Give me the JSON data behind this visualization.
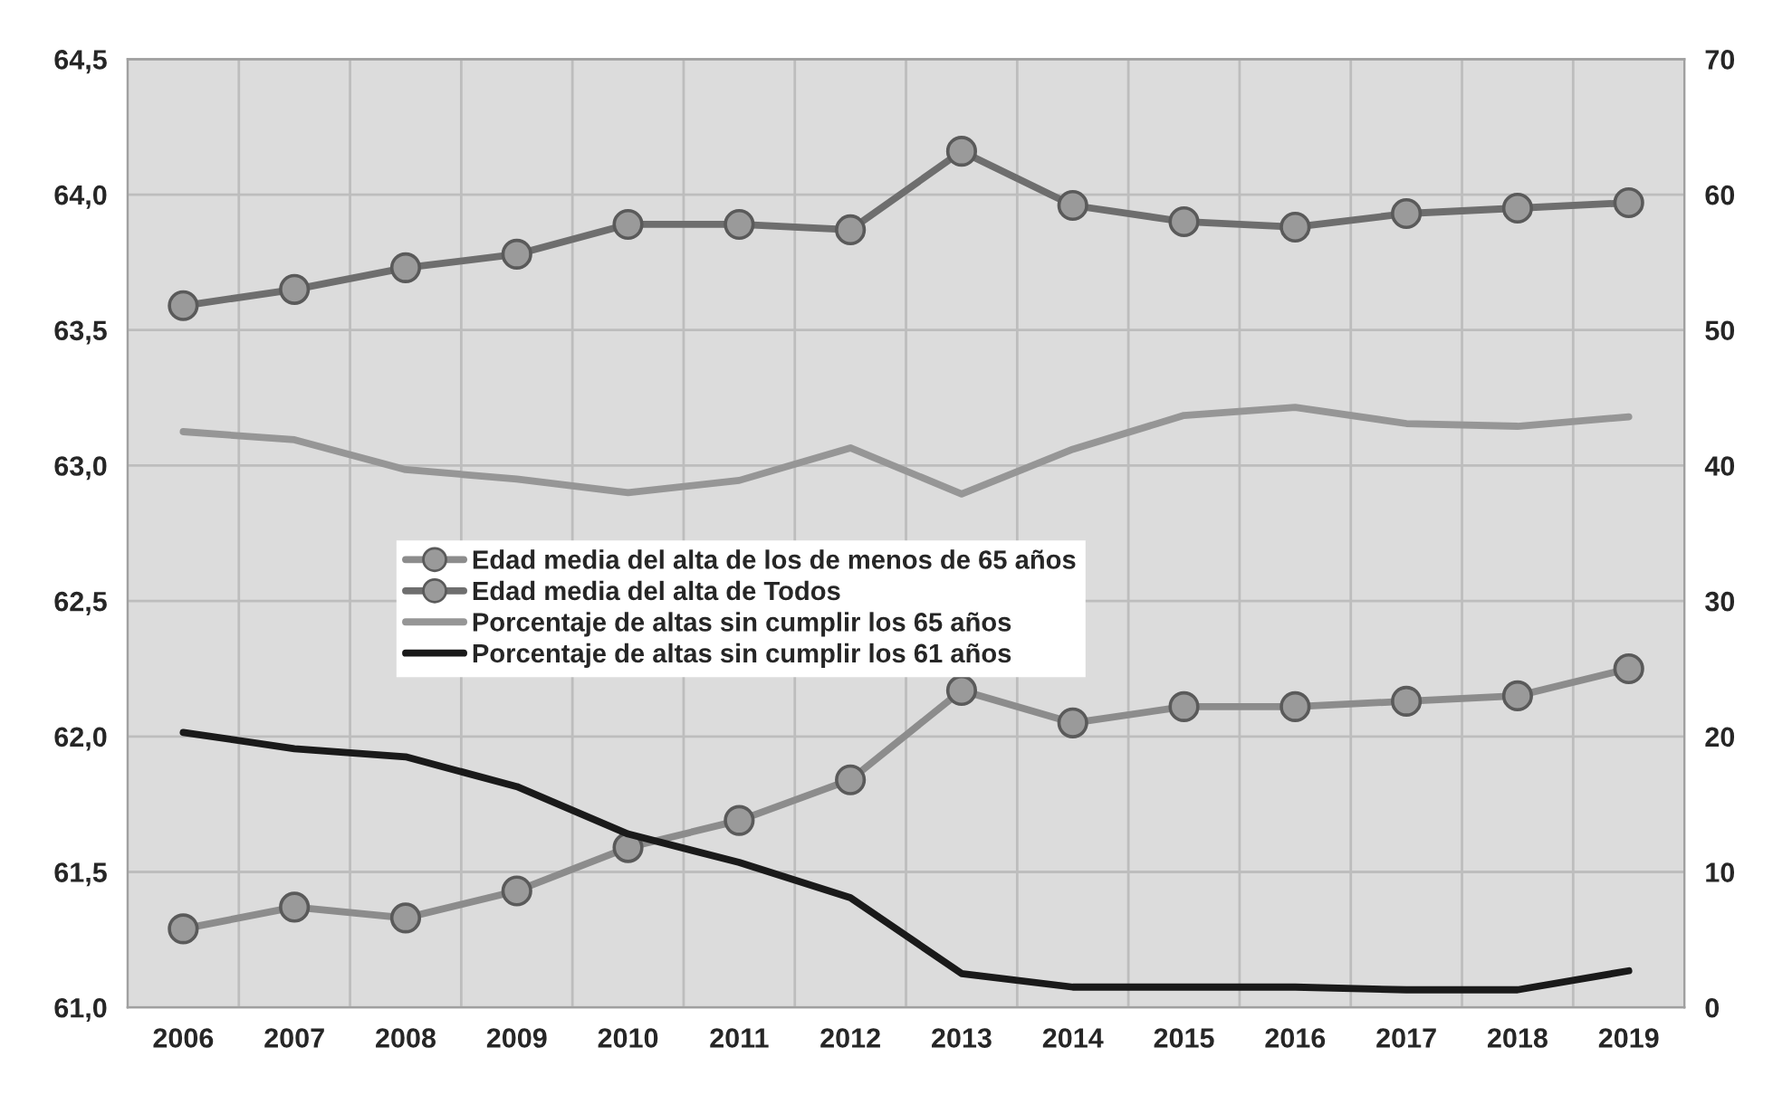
{
  "chart_data": {
    "type": "line",
    "categories": [
      "2006",
      "2007",
      "2008",
      "2009",
      "2010",
      "2011",
      "2012",
      "2013",
      "2014",
      "2015",
      "2016",
      "2017",
      "2018",
      "2019"
    ],
    "series": [
      {
        "name": "Edad media del alta de los de menos de 65 años",
        "color": "#8c8c8c",
        "marker": "circle",
        "values": [
          61.29,
          61.37,
          61.33,
          61.43,
          61.59,
          61.69,
          61.84,
          62.17,
          62.05,
          62.11,
          62.11,
          62.13,
          62.15,
          62.25
        ]
      },
      {
        "name": "Edad media del alta de Todos",
        "color": "#6e6e6e",
        "marker": "circle",
        "values": [
          63.59,
          63.65,
          63.73,
          63.78,
          63.89,
          63.89,
          63.87,
          64.16,
          63.96,
          63.9,
          63.88,
          63.93,
          63.95,
          63.97
        ]
      },
      {
        "name": "Porcentaje de altas sin cumplir los 65 años",
        "color": "#969696",
        "marker": "none",
        "axis": "y2",
        "values": [
          42.5,
          41.9,
          39.7,
          39.0,
          38.0,
          38.9,
          41.3,
          37.9,
          41.2,
          43.7,
          44.3,
          43.1,
          42.9,
          43.6
        ]
      },
      {
        "name": "Porcentaje de altas sin cumplir los 61 años",
        "color": "#1a1a1a",
        "marker": "none",
        "axis": "y2",
        "values": [
          20.3,
          19.1,
          18.5,
          16.3,
          12.8,
          10.7,
          8.1,
          2.5,
          1.5,
          1.5,
          1.5,
          1.3,
          1.3,
          2.7
        ]
      }
    ],
    "ylim": [
      61.0,
      64.5
    ],
    "yticks": [
      {
        "value": 61.0,
        "label": "61,0"
      },
      {
        "value": 61.5,
        "label": "61,5"
      },
      {
        "value": 62.0,
        "label": "62,0"
      },
      {
        "value": 62.5,
        "label": "62,5"
      },
      {
        "value": 63.0,
        "label": "63,0"
      },
      {
        "value": 63.5,
        "label": "63,5"
      },
      {
        "value": 64.0,
        "label": "64,0"
      },
      {
        "value": 64.5,
        "label": "64,5"
      }
    ],
    "y2lim": [
      0,
      70
    ],
    "y2ticks": [
      0,
      10,
      20,
      30,
      40,
      50,
      60,
      70
    ],
    "grid": true,
    "legend": "center left",
    "line_style": "solid"
  }
}
